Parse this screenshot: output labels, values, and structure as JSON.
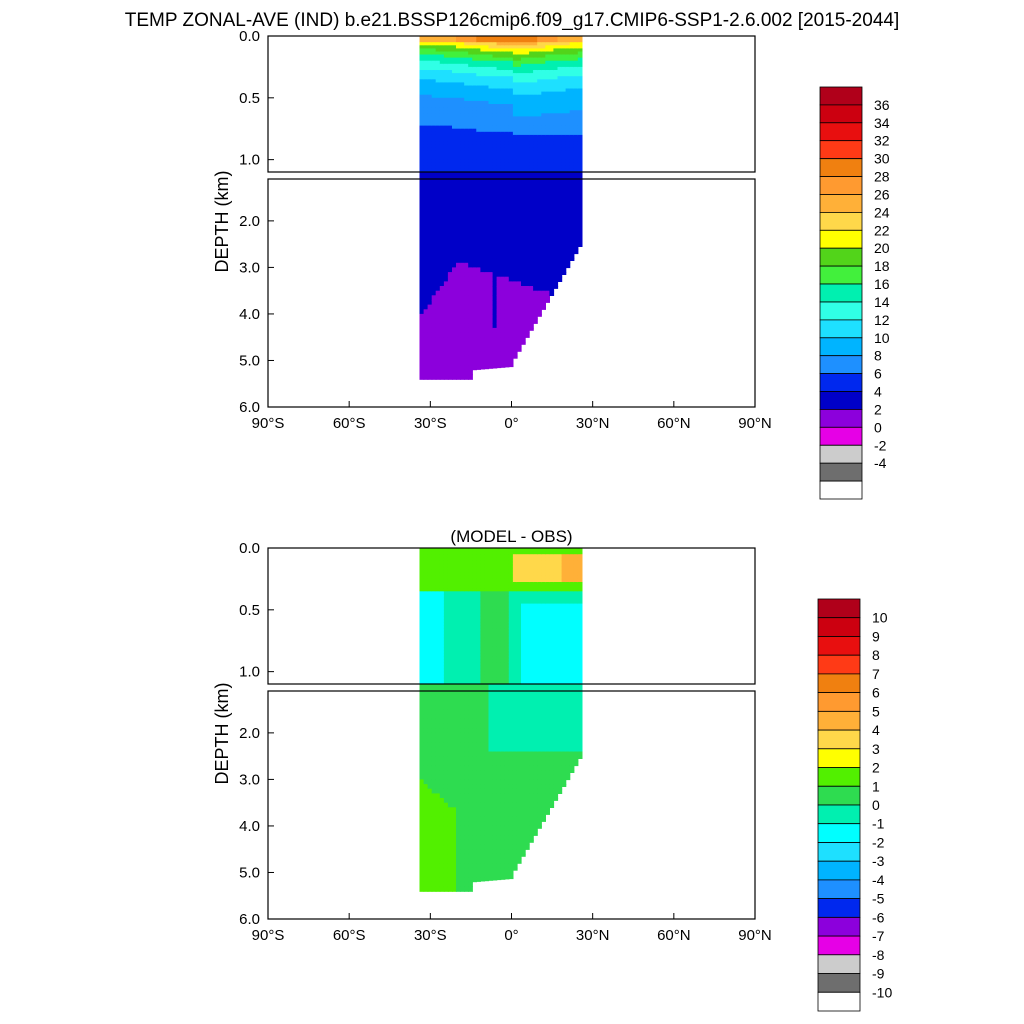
{
  "figure": {
    "title": "TEMP ZONAL-AVE (IND) b.e21.BSSP126cmip6.f09_g17.CMIP6-SSP1-2.6.002 [2015-2044]"
  },
  "chart_data": [
    {
      "type": "heatmap",
      "title": "",
      "xlabel": "",
      "ylabel": "DEPTH (km)",
      "x_ticks": [
        "90°S",
        "60°S",
        "30°S",
        "0°",
        "30°N",
        "60°N",
        "90°N"
      ],
      "x_tick_values": [
        -90,
        -60,
        -30,
        0,
        30,
        60,
        90
      ],
      "y_ticks_upper": [
        "0.0",
        "0.5",
        "1.0"
      ],
      "y_ticks_lower": [
        "2.0",
        "3.0",
        "4.0",
        "5.0",
        "6.0"
      ],
      "xlim": [
        -90,
        90
      ],
      "ylim_upper_km": [
        0,
        1.1
      ],
      "ylim_lower_km": [
        1.1,
        6.0
      ],
      "data_lat_extent": [
        -34,
        25
      ],
      "colorbar_labels": [
        "36",
        "34",
        "32",
        "30",
        "28",
        "26",
        "24",
        "22",
        "20",
        "18",
        "16",
        "14",
        "12",
        "10",
        "8",
        "6",
        "4",
        "2",
        "0",
        "-2",
        "-4"
      ],
      "colorbar_colors": [
        "#b0001a",
        "#cc0010",
        "#e80f0f",
        "#ff3a16",
        "#f08010",
        "#ff9a30",
        "#ffb038",
        "#ffd84a",
        "#ffff00",
        "#52d41a",
        "#42f03c",
        "#00f0b0",
        "#30ffe6",
        "#1ee0ff",
        "#00b4ff",
        "#1e90ff",
        "#0028ee",
        "#0000c8",
        "#8c00dc",
        "#e600e6",
        "#cccccc",
        "#6e6e6e",
        "#ffffff"
      ]
    },
    {
      "type": "heatmap",
      "title": "(MODEL - OBS)",
      "xlabel": "",
      "ylabel": "DEPTH (km)",
      "x_ticks": [
        "90°S",
        "60°S",
        "30°S",
        "0°",
        "30°N",
        "60°N",
        "90°N"
      ],
      "x_tick_values": [
        -90,
        -60,
        -30,
        0,
        30,
        60,
        90
      ],
      "y_ticks_upper": [
        "0.0",
        "0.5",
        "1.0"
      ],
      "y_ticks_lower": [
        "2.0",
        "3.0",
        "4.0",
        "5.0",
        "6.0"
      ],
      "xlim": [
        -90,
        90
      ],
      "ylim_upper_km": [
        0,
        1.1
      ],
      "ylim_lower_km": [
        1.1,
        6.0
      ],
      "data_lat_extent": [
        -34,
        25
      ],
      "colorbar_labels": [
        "10",
        "9",
        "8",
        "7",
        "6",
        "5",
        "4",
        "3",
        "2",
        "1",
        "0",
        "-1",
        "-2",
        "-3",
        "-4",
        "-5",
        "-6",
        "-7",
        "-8",
        "-9",
        "-10"
      ],
      "colorbar_colors": [
        "#b0001a",
        "#cc0010",
        "#e80f0f",
        "#ff3a16",
        "#f08010",
        "#ff9a30",
        "#ffb038",
        "#ffd84a",
        "#ffff00",
        "#52f000",
        "#2edc50",
        "#00f0b0",
        "#00ffff",
        "#1ee0ff",
        "#00b4ff",
        "#1e90ff",
        "#0028ee",
        "#8c00dc",
        "#e600e6",
        "#cccccc",
        "#6e6e6e",
        "#ffffff"
      ]
    }
  ]
}
